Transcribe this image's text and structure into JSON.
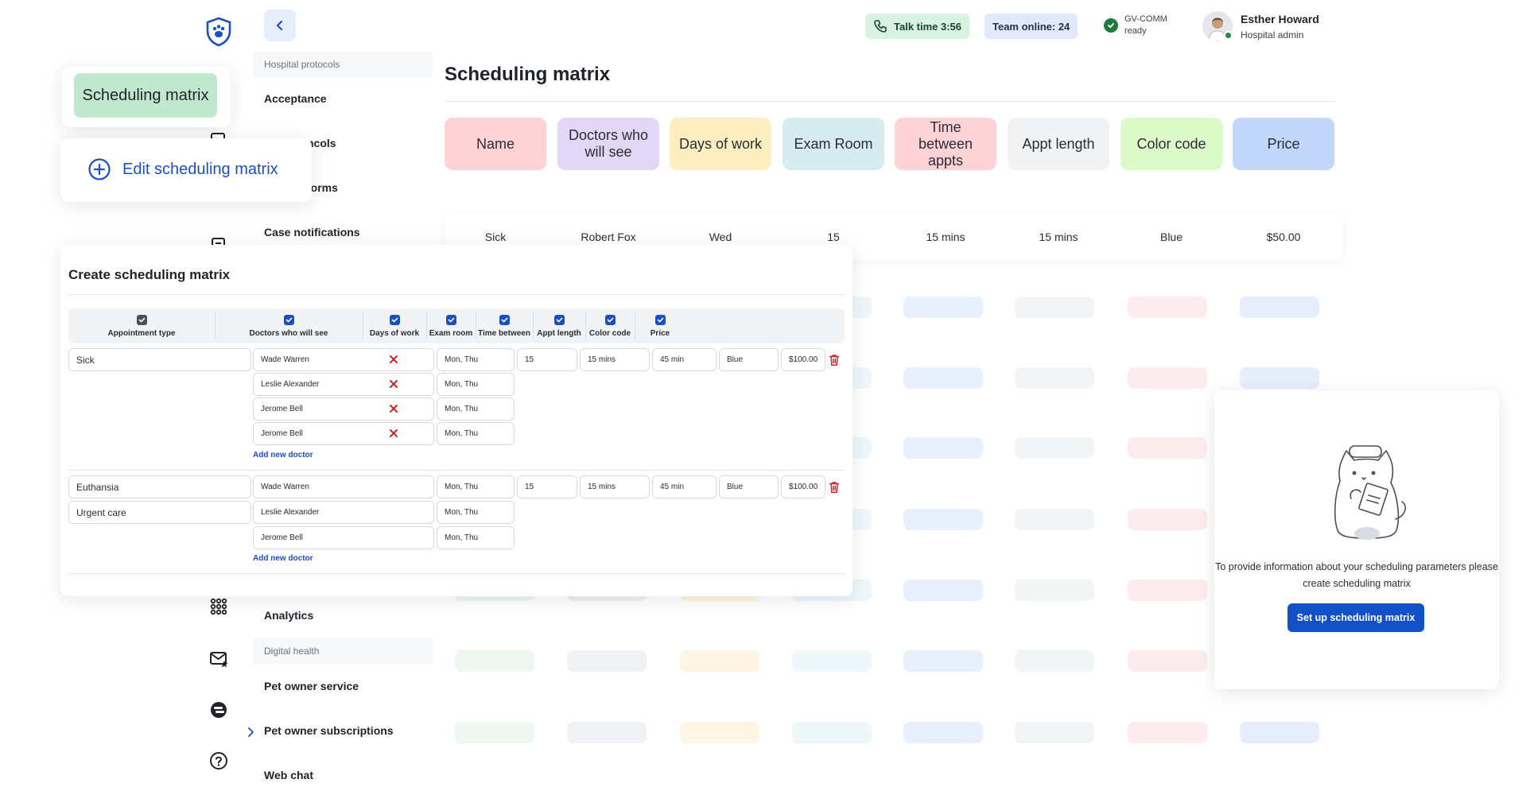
{
  "topbar": {
    "talk_time": "Talk time 3:56",
    "team_online": "Team online: 24",
    "status_line1": "GV-COMM",
    "status_line2": "ready",
    "user_name": "Esther Howard",
    "user_role": "Hospital admin"
  },
  "nav": {
    "section_protocols": "Hospital protocols",
    "acceptance": "Acceptance",
    "protocols_partial": "ncols",
    "forms_partial": "forms",
    "case_notifications": "Case notifications",
    "analytics": "Analytics",
    "section_digital": "Digital health",
    "pet_owner_service": "Pet owner service",
    "pet_owner_subscriptions": "Pet owner subscriptions",
    "web_chat": "Web chat"
  },
  "main": {
    "title": "Scheduling matrix",
    "headers": [
      {
        "label": "Name",
        "color": "#fdd3d6"
      },
      {
        "label": "Doctors who will see",
        "color": "#e2d7f5"
      },
      {
        "label": "Days of work",
        "color": "#fdeec1"
      },
      {
        "label": "Exam Room",
        "color": "#d6ecf1"
      },
      {
        "label": "Time between appts",
        "color": "#fdd3d6"
      },
      {
        "label": "Appt length",
        "color": "#f1f2f4"
      },
      {
        "label": "Color code",
        "color": "#dcf9c8"
      },
      {
        "label": "Price",
        "color": "#c3d6fb"
      }
    ],
    "row": [
      "Sick",
      "Robert Fox",
      "Wed",
      "15",
      "15 mins",
      "15 mins",
      "Blue",
      "$50.00"
    ]
  },
  "tag_card": {
    "label": "Scheduling matrix"
  },
  "edit_card": {
    "label": "Edit scheduling matrix"
  },
  "create": {
    "title": "Create scheduling matrix",
    "columns": [
      "Appointment type",
      "Doctors who will see",
      "Days of work",
      "Exam room",
      "Time between",
      "Appt length",
      "Color code",
      "Price"
    ],
    "group1": {
      "type": "Sick",
      "doctors": [
        "Wade Warren",
        "Leslie Alexander",
        "Jerome Bell",
        "Jerome Bell"
      ],
      "days": [
        "Mon, Thu",
        "Mon, Thu",
        "Mon, Thu",
        "Mon, Thu"
      ],
      "exam_room": "15",
      "time_between": "15 mins",
      "appt_length": "45 min",
      "color_code": "Blue",
      "price": "$100.00",
      "add_doctor": "Add new doctor"
    },
    "group2": {
      "types": [
        "Euthansia",
        "Urgent care"
      ],
      "doctors": [
        "Wade Warren",
        "Leslie Alexander",
        "Jerome Bell"
      ],
      "days": [
        "Mon, Thu",
        "Mon, Thu",
        "Mon, Thu"
      ],
      "exam_room": "15",
      "time_between": "15 mins",
      "appt_length": "45 min",
      "color_code": "Blue",
      "price": "$100.00",
      "add_doctor": "Add new doctor"
    }
  },
  "empty_state": {
    "text": "To provide information about your scheduling parameters please create scheduling matrix",
    "button": "Set up scheduling matrix"
  },
  "colors": {
    "brand_blue": "#1250c8",
    "link_blue": "#1b4fc4",
    "danger": "#c62828",
    "success": "#1d7b3c"
  }
}
